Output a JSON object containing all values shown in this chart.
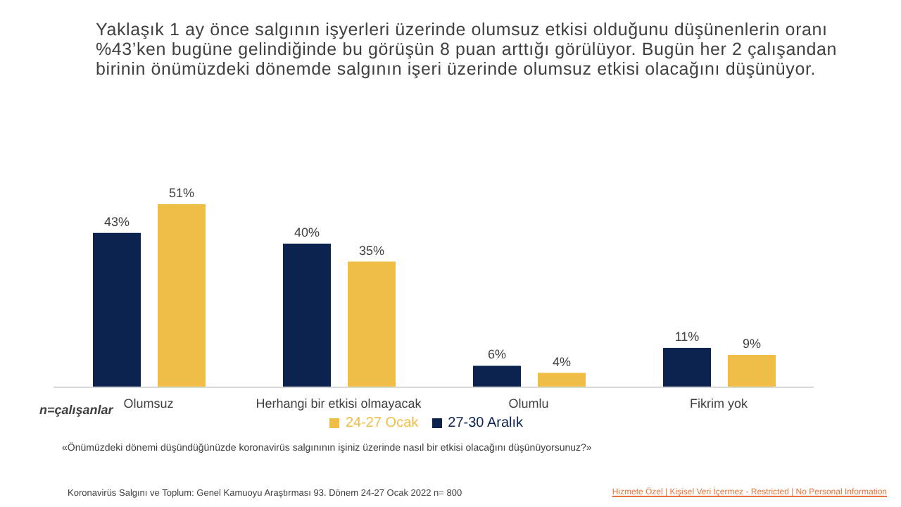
{
  "chart_data": {
    "type": "bar",
    "title": "Yaklaşık 1 ay önce salgının işyerleri üzerinde olumsuz etkisi olduğunu düşünenlerin oranı %43’ken bugüne gelindiğinde bu görüşün 8 puan arttığı görülüyor. Bugün her 2 çalışandan birinin önümüzdeki dönemde salgının işeri üzerinde olumsuz etkisi olacağını düşünüyor.",
    "categories": [
      "Olumsuz",
      "Herhangi bir etkisi olmayacak",
      "Olumlu",
      "Fikrim yok"
    ],
    "series": [
      {
        "name": "27-30 Aralık",
        "color": "#0c2350",
        "values": [
          43,
          40,
          6,
          11
        ],
        "value_labels": [
          "43%",
          "40%",
          "6%",
          "11%"
        ]
      },
      {
        "name": "24-27 Ocak",
        "color": "#f0bd47",
        "values": [
          51,
          35,
          4,
          9
        ],
        "value_labels": [
          "51%",
          "35%",
          "4%",
          "9%"
        ]
      }
    ],
    "legend": "bottom",
    "grid": false,
    "annotations": [
      "n=çalışanlar",
      "«Önümüzdeki dönemi düşündüğünüzde koronavirüs salgınının  işiniz üzerinde nasıl bir etkisi olacağını düşünüyorsunuz?»",
      "Koronavirüs  Salgını ve Toplum:  Genel Kamuoyu Araştırması 93. Dönem  24-27   Ocak 2022 n= 800",
      "Hizmete Özel | Kişisel Veri İçermez - Restricted | No Personal Information"
    ]
  }
}
